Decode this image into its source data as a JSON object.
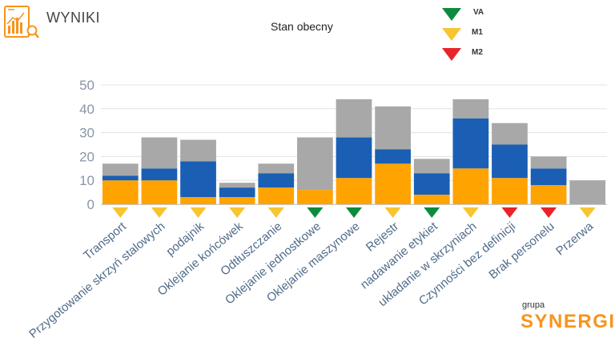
{
  "header": {
    "title": "WYNIKI",
    "logo_icon": "report-chart-magnifier-icon"
  },
  "legend": [
    {
      "label": "VA",
      "color": "#0E8A3E"
    },
    {
      "label": "M1",
      "color": "#F7C531"
    },
    {
      "label": "M2",
      "color": "#E8232A"
    }
  ],
  "brand": {
    "small": "grupa",
    "big": "SYNERGIA"
  },
  "chart_data": {
    "type": "bar",
    "stacked": true,
    "title": "Stan obecny",
    "xlabel": "",
    "ylabel": "",
    "ylim": [
      0,
      50
    ],
    "yticks": [
      0,
      10,
      20,
      30,
      40,
      50
    ],
    "grid": true,
    "categories": [
      "Transport",
      "Przygotowanie skrzyń stalowych",
      "podajnik",
      "Oklejanie końcówek",
      "Odtłuszczanie",
      "Oklejanie jednostkowe",
      "Oklejanie maszynowe",
      "Rejestr",
      "nadawanie etykiet",
      "układanie w skrzyniach",
      "Czynności bez definicji",
      "Brak personelu",
      "Przerwa"
    ],
    "category_markers": [
      "M1",
      "M1",
      "M1",
      "M1",
      "M1",
      "VA",
      "VA",
      "M1",
      "VA",
      "M1",
      "M2",
      "M2",
      "M1"
    ],
    "series": [
      {
        "color": "#FFA300",
        "values": [
          10,
          10,
          3,
          3,
          7,
          6,
          11,
          17,
          4,
          15,
          11,
          8,
          0
        ]
      },
      {
        "color": "#1A5FB4",
        "values": [
          2,
          5,
          15,
          4,
          6,
          0,
          17,
          6,
          9,
          21,
          14,
          7,
          0
        ]
      },
      {
        "color": "#A8A8A8",
        "values": [
          5,
          13,
          9,
          2,
          4,
          22,
          16,
          18,
          6,
          8,
          9,
          5,
          10
        ]
      }
    ]
  }
}
